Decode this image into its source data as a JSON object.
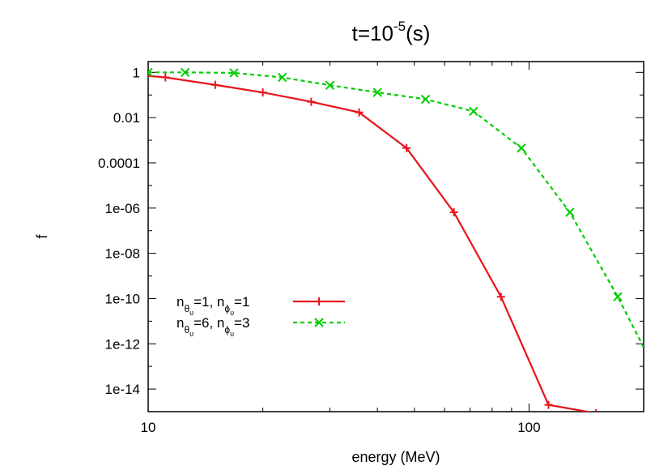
{
  "chart_data": {
    "type": "line",
    "title": {
      "base": "t=10",
      "exponent": "-5",
      "suffix": "(s)"
    },
    "xlabel": "energy (MeV)",
    "ylabel": "f",
    "x_scale": "log",
    "y_scale": "log",
    "xlim": [
      10,
      200
    ],
    "ylim": [
      1e-15,
      3
    ],
    "x_ticks": [
      {
        "value": 10,
        "label": "10"
      },
      {
        "value": 100,
        "label": "100"
      }
    ],
    "y_ticks": [
      {
        "value": 1,
        "label": "1"
      },
      {
        "value": 0.01,
        "label": "0.01"
      },
      {
        "value": 0.0001,
        "label": "0.0001"
      },
      {
        "value": 1e-06,
        "label": "1e-06"
      },
      {
        "value": 1e-08,
        "label": "1e-08"
      },
      {
        "value": 1e-10,
        "label": "1e-10"
      },
      {
        "value": 1e-12,
        "label": "1e-12"
      },
      {
        "value": 1e-14,
        "label": "1e-14"
      }
    ],
    "legend_position": "bottom-left",
    "series": [
      {
        "name": {
          "p1": "n",
          "s1": "θ",
          "ss1": "υ",
          "p2": "=1, n",
          "s2": "ϕ",
          "ss2": "υ",
          "p3": "=1"
        },
        "color": "#e8131b",
        "line_style": "solid",
        "marker": "plus",
        "x": [
          10.0,
          11.1,
          15.0,
          20.0,
          26.8,
          35.8,
          47.7,
          63.5,
          84.4,
          112.5,
          150.0
        ],
        "y": [
          0.7,
          0.6,
          0.28,
          0.13,
          0.05,
          0.017,
          0.00045,
          6.5e-07,
          1.2e-10,
          2e-15,
          8.5e-16
        ]
      },
      {
        "name": {
          "p1": "n",
          "s1": "θ",
          "ss1": "υ",
          "p2": "=6, n",
          "s2": "ϕ",
          "ss2": "υ",
          "p3": "=3"
        },
        "color": "#00cc00",
        "line_style": "dashed",
        "marker": "x",
        "x": [
          10.0,
          12.5,
          16.8,
          22.5,
          30.0,
          40.0,
          53.5,
          71.5,
          95.5,
          128.0,
          171.0,
          200.0
        ],
        "y": [
          1.0,
          1.0,
          0.95,
          0.6,
          0.27,
          0.13,
          0.065,
          0.019,
          0.00045,
          6.5e-07,
          1.2e-10,
          7e-13
        ]
      }
    ]
  }
}
